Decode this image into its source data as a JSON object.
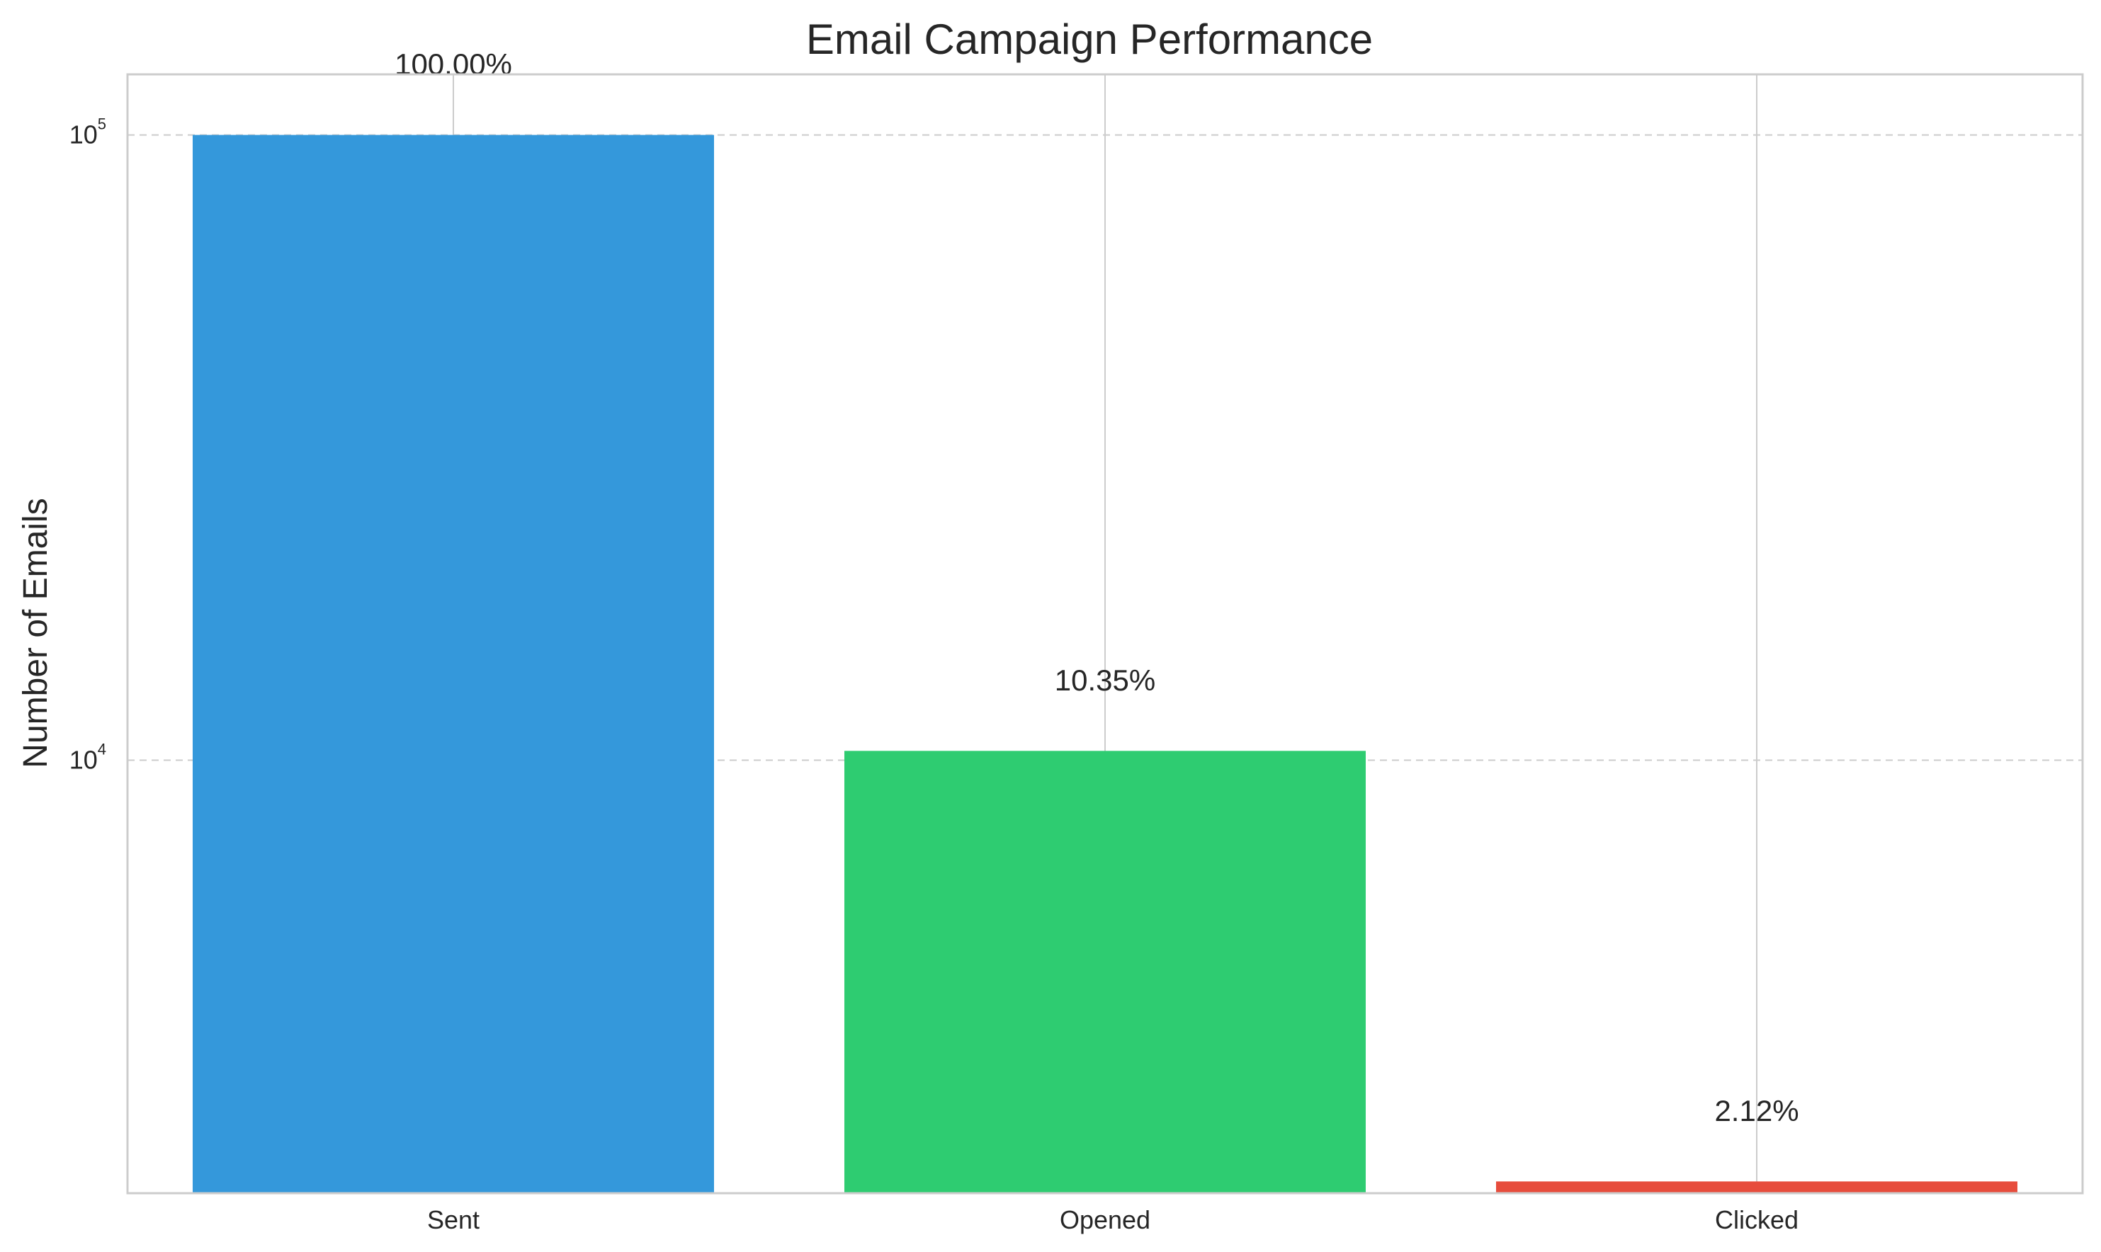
{
  "chart_data": {
    "type": "bar",
    "title": "Email Campaign Performance",
    "xlabel": "",
    "ylabel": "Number of Emails",
    "y_scale": "log",
    "ylim": [
      2030,
      125000
    ],
    "y_ticks": [
      {
        "value": 10000,
        "base": "10",
        "exp": "4"
      },
      {
        "value": 100000,
        "base": "10",
        "exp": "5"
      }
    ],
    "categories": [
      "Sent",
      "Opened",
      "Clicked"
    ],
    "values": [
      100000,
      10350,
      2120
    ],
    "data_labels": [
      "100.00%",
      "10.35%",
      "2.12%"
    ],
    "colors": [
      "#3498db",
      "#2ecc71",
      "#e74c3c"
    ],
    "grid": {
      "x": true,
      "y": true,
      "y_style": "dashed"
    },
    "legend": "none"
  }
}
